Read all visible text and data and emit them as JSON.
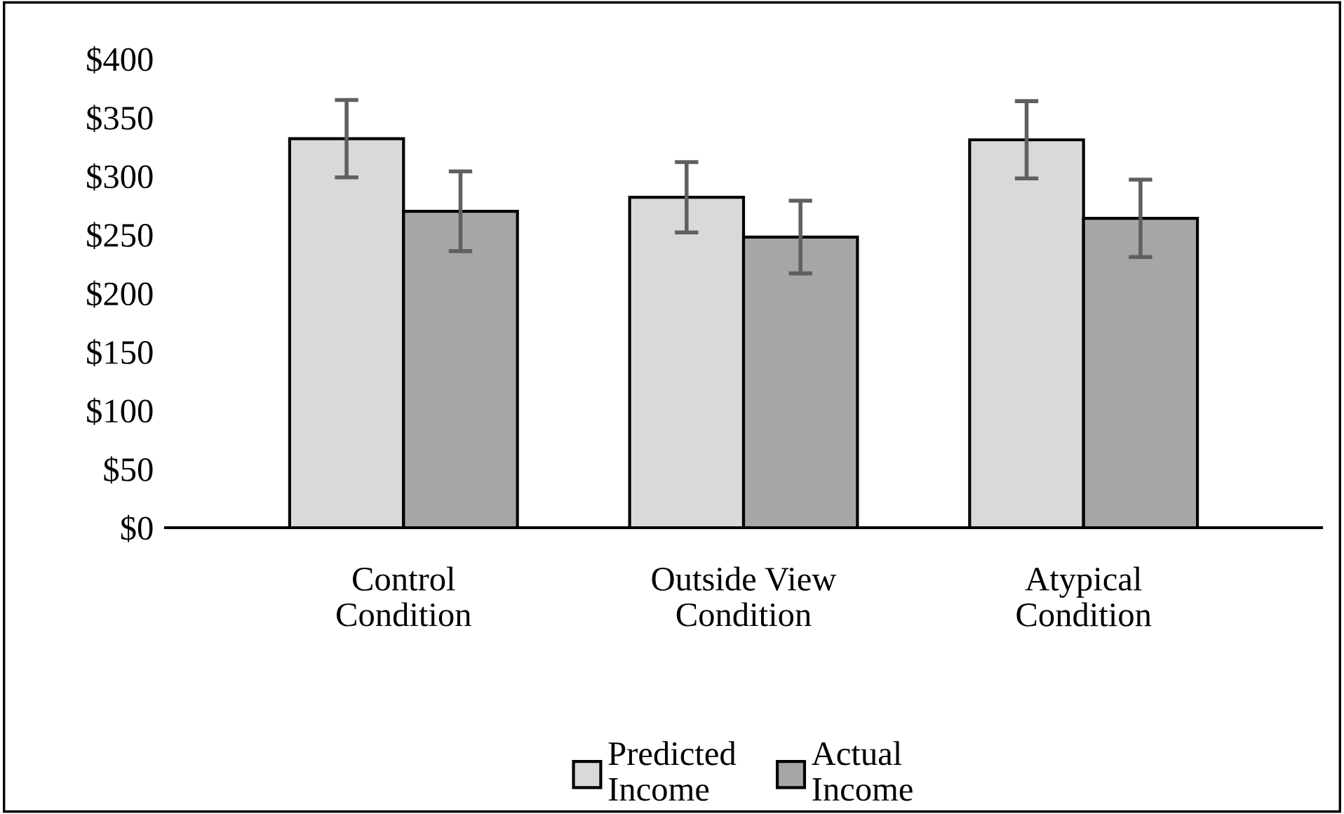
{
  "chart_data": {
    "type": "bar",
    "categories": [
      "Control\nCondition",
      "Outside View\nCondition",
      "Atypical\nCondition"
    ],
    "series": [
      {
        "name": "Predicted\nIncome",
        "color": "#d9d9d9",
        "values": [
          332,
          282,
          331
        ],
        "errors": [
          33,
          30,
          33
        ]
      },
      {
        "name": "Actual\nIncome",
        "color": "#a6a6a6",
        "values": [
          270,
          248,
          264
        ],
        "errors": [
          34,
          31,
          33
        ]
      }
    ],
    "ylim": [
      0,
      400
    ],
    "yticks": [
      {
        "value": 0,
        "label": "$0"
      },
      {
        "value": 50,
        "label": "$50"
      },
      {
        "value": 100,
        "label": "$100"
      },
      {
        "value": 150,
        "label": "$150"
      },
      {
        "value": 200,
        "label": "$200"
      },
      {
        "value": 250,
        "label": "$250"
      },
      {
        "value": 300,
        "label": "$300"
      },
      {
        "value": 350,
        "label": "$350"
      },
      {
        "value": 400,
        "label": "$400"
      }
    ],
    "grid": false,
    "legend": "bottom"
  }
}
